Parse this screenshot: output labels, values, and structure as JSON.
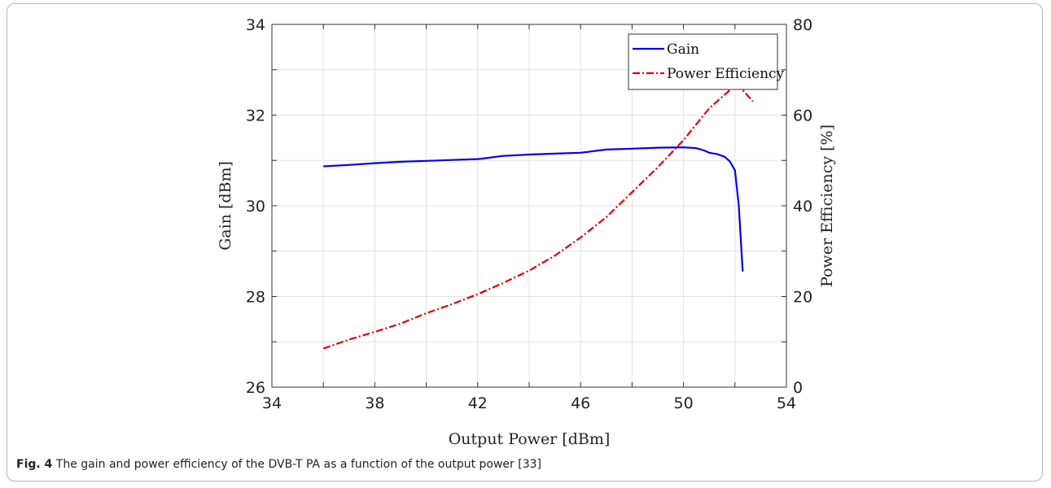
{
  "caption": {
    "label": "Fig. 4",
    "text": "The gain and power efficiency of the DVB-T PA as a function of the output power [33]"
  },
  "chart_data": {
    "type": "line",
    "xlabel": "Output Power [dBm]",
    "ylabel_left": "Gain [dBm]",
    "ylabel_right": "Power Efficiency [%]",
    "xlim": [
      34,
      54
    ],
    "xticks": [
      34,
      38,
      42,
      46,
      50,
      54
    ],
    "ylim_left": [
      26,
      34
    ],
    "yticks_left": [
      26,
      28,
      30,
      32,
      34
    ],
    "ylim_right": [
      0,
      80
    ],
    "yticks_right": [
      0,
      20,
      40,
      60,
      80
    ],
    "grid": true,
    "legend_position": "top-right",
    "series": [
      {
        "name": "Gain",
        "axis": "left",
        "color": "#0000ee",
        "style": "solid",
        "x": [
          36,
          37,
          38,
          39,
          40,
          41,
          42,
          42.3,
          42.7,
          43,
          44,
          45,
          46,
          46.3,
          46.7,
          47,
          48,
          49,
          50,
          50.5,
          50.8,
          51,
          51.3,
          51.6,
          51.8,
          52,
          52.15,
          52.3
        ],
        "y": [
          30.87,
          30.9,
          30.94,
          30.97,
          30.99,
          31.01,
          31.03,
          31.05,
          31.08,
          31.1,
          31.13,
          31.15,
          31.17,
          31.19,
          31.22,
          31.24,
          31.26,
          31.28,
          31.29,
          31.27,
          31.22,
          31.17,
          31.14,
          31.08,
          30.98,
          30.78,
          30.0,
          28.55
        ]
      },
      {
        "name": "Power Efficiency",
        "axis": "right",
        "color": "#e00000",
        "style": "dash-dot",
        "x": [
          36,
          37,
          38,
          39,
          40,
          41,
          42,
          43,
          44,
          45,
          46,
          47,
          48,
          49,
          50,
          50.5,
          51,
          51.5,
          52,
          52.3,
          52.7
        ],
        "y": [
          8.5,
          10.5,
          12.2,
          14.0,
          16.3,
          18.3,
          20.5,
          23.0,
          25.7,
          29.0,
          33.0,
          37.5,
          43.0,
          48.5,
          54.5,
          58.0,
          61.5,
          64.0,
          66.5,
          65.5,
          63.0
        ]
      }
    ]
  }
}
